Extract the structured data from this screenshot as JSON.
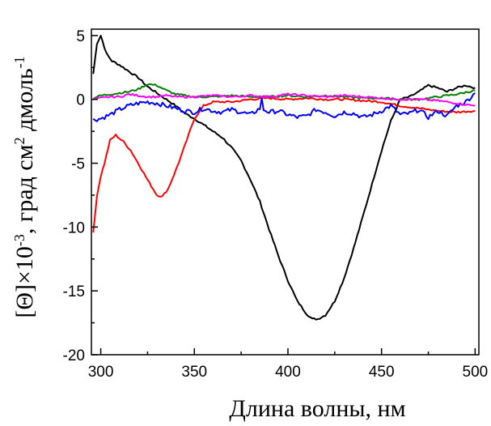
{
  "chart_data": {
    "type": "line",
    "xlabel": "Длина волны, нм",
    "ylabel": {
      "parts": [
        {
          "text": "[Θ]×10",
          "sup": false
        },
        {
          "text": "-3",
          "sup": true
        },
        {
          "text": ", град см",
          "sup": false
        },
        {
          "text": "2",
          "sup": true
        },
        {
          "text": " дмоль",
          "sup": false
        },
        {
          "text": "-1",
          "sup": true
        }
      ]
    },
    "xlim": [
      295,
      502
    ],
    "ylim": [
      -20,
      5.5
    ],
    "xticks": [
      300,
      350,
      400,
      450,
      500
    ],
    "yticks": [
      5,
      0,
      -5,
      -10,
      -15,
      -20
    ],
    "grid": false,
    "legend": "none",
    "series": [
      {
        "color": "#000000",
        "points": [
          [
            296,
            2.0
          ],
          [
            298,
            4.4
          ],
          [
            300,
            5.0
          ],
          [
            303,
            3.6
          ],
          [
            306,
            3.0
          ],
          [
            310,
            2.7
          ],
          [
            315,
            2.2
          ],
          [
            320,
            1.7
          ],
          [
            325,
            1.0
          ],
          [
            330,
            0.5
          ],
          [
            335,
            0.0
          ],
          [
            340,
            -0.5
          ],
          [
            345,
            -1.1
          ],
          [
            350,
            -1.5
          ],
          [
            355,
            -2.0
          ],
          [
            360,
            -2.5
          ],
          [
            365,
            -3.0
          ],
          [
            370,
            -3.8
          ],
          [
            375,
            -4.8
          ],
          [
            380,
            -6.3
          ],
          [
            385,
            -8.0
          ],
          [
            390,
            -10.2
          ],
          [
            395,
            -12.3
          ],
          [
            400,
            -14.2
          ],
          [
            405,
            -15.8
          ],
          [
            410,
            -16.8
          ],
          [
            413,
            -17.2
          ],
          [
            416,
            -17.2
          ],
          [
            420,
            -16.9
          ],
          [
            425,
            -15.8
          ],
          [
            430,
            -14.0
          ],
          [
            435,
            -11.7
          ],
          [
            440,
            -9.2
          ],
          [
            445,
            -6.6
          ],
          [
            450,
            -4.0
          ],
          [
            455,
            -1.7
          ],
          [
            460,
            0.0
          ],
          [
            465,
            0.2
          ],
          [
            470,
            0.6
          ],
          [
            475,
            1.1
          ],
          [
            480,
            0.9
          ],
          [
            485,
            0.6
          ],
          [
            490,
            0.9
          ],
          [
            495,
            1.1
          ],
          [
            500,
            0.9
          ]
        ]
      },
      {
        "color": "#ff0000",
        "points": [
          [
            296,
            -10.5
          ],
          [
            298,
            -7.5
          ],
          [
            300,
            -6.0
          ],
          [
            302,
            -5.0
          ],
          [
            305,
            -3.2
          ],
          [
            308,
            -2.8
          ],
          [
            312,
            -3.3
          ],
          [
            316,
            -4.0
          ],
          [
            320,
            -5.0
          ],
          [
            325,
            -6.3
          ],
          [
            330,
            -7.5
          ],
          [
            333,
            -7.6
          ],
          [
            336,
            -7.0
          ],
          [
            340,
            -5.6
          ],
          [
            345,
            -3.6
          ],
          [
            350,
            -1.5
          ],
          [
            355,
            -0.5
          ],
          [
            360,
            -0.2
          ],
          [
            370,
            -0.2
          ],
          [
            380,
            0.0
          ],
          [
            390,
            0.1
          ],
          [
            400,
            0.0
          ],
          [
            410,
            0.1
          ],
          [
            420,
            0.0
          ],
          [
            430,
            0.0
          ],
          [
            440,
            -0.1
          ],
          [
            450,
            -0.2
          ],
          [
            460,
            -0.5
          ],
          [
            470,
            -0.7
          ],
          [
            480,
            -0.9
          ],
          [
            490,
            -1.0
          ],
          [
            500,
            -0.9
          ]
        ]
      },
      {
        "color": "#0000ff",
        "points": [
          [
            296,
            -1.6
          ],
          [
            300,
            -1.5
          ],
          [
            305,
            -1.2
          ],
          [
            310,
            -0.8
          ],
          [
            315,
            -0.5
          ],
          [
            320,
            -0.3
          ],
          [
            325,
            -0.2
          ],
          [
            330,
            -0.3
          ],
          [
            335,
            -0.5
          ],
          [
            340,
            -0.7
          ],
          [
            345,
            -0.9
          ],
          [
            350,
            -1.0
          ],
          [
            355,
            -0.7
          ],
          [
            360,
            -0.9
          ],
          [
            365,
            -1.0
          ],
          [
            370,
            -0.8
          ],
          [
            375,
            -1.0
          ],
          [
            380,
            -1.2
          ],
          [
            385,
            -0.7
          ],
          [
            386,
            0.0
          ],
          [
            387,
            -0.8
          ],
          [
            390,
            -1.0
          ],
          [
            395,
            -0.9
          ],
          [
            400,
            -1.2
          ],
          [
            405,
            -1.4
          ],
          [
            410,
            -1.3
          ],
          [
            415,
            -0.8
          ],
          [
            420,
            -1.0
          ],
          [
            425,
            -1.3
          ],
          [
            430,
            -1.0
          ],
          [
            435,
            -1.1
          ],
          [
            440,
            -1.4
          ],
          [
            445,
            -1.2
          ],
          [
            450,
            -0.9
          ],
          [
            455,
            -0.5
          ],
          [
            460,
            -1.2
          ],
          [
            465,
            -1.1
          ],
          [
            470,
            -0.8
          ],
          [
            475,
            -1.4
          ],
          [
            480,
            -0.9
          ],
          [
            485,
            -1.3
          ],
          [
            490,
            -0.5
          ],
          [
            495,
            -0.2
          ],
          [
            500,
            0.5
          ]
        ]
      },
      {
        "color": "#008000",
        "points": [
          [
            296,
            0.1
          ],
          [
            300,
            0.3
          ],
          [
            305,
            0.4
          ],
          [
            310,
            0.5
          ],
          [
            315,
            0.6
          ],
          [
            320,
            0.8
          ],
          [
            325,
            1.2
          ],
          [
            330,
            1.1
          ],
          [
            335,
            0.7
          ],
          [
            340,
            0.4
          ],
          [
            345,
            0.3
          ],
          [
            350,
            0.2
          ],
          [
            360,
            0.2
          ],
          [
            370,
            0.3
          ],
          [
            380,
            0.2
          ],
          [
            390,
            0.2
          ],
          [
            400,
            0.3
          ],
          [
            410,
            0.2
          ],
          [
            420,
            0.3
          ],
          [
            430,
            0.2
          ],
          [
            440,
            0.1
          ],
          [
            450,
            0.1
          ],
          [
            460,
            0.0
          ],
          [
            470,
            0.0
          ],
          [
            480,
            0.2
          ],
          [
            490,
            0.4
          ],
          [
            500,
            0.7
          ]
        ]
      },
      {
        "color": "#ff00ff",
        "points": [
          [
            296,
            0.0
          ],
          [
            300,
            0.1
          ],
          [
            305,
            0.2
          ],
          [
            310,
            0.2
          ],
          [
            315,
            0.4
          ],
          [
            320,
            0.3
          ],
          [
            325,
            0.2
          ],
          [
            330,
            0.2
          ],
          [
            335,
            0.3
          ],
          [
            340,
            0.2
          ],
          [
            350,
            0.2
          ],
          [
            360,
            0.3
          ],
          [
            370,
            0.2
          ],
          [
            380,
            0.3
          ],
          [
            390,
            0.2
          ],
          [
            400,
            0.4
          ],
          [
            410,
            0.3
          ],
          [
            420,
            0.2
          ],
          [
            430,
            0.3
          ],
          [
            440,
            0.2
          ],
          [
            450,
            0.1
          ],
          [
            460,
            0.0
          ],
          [
            470,
            0.0
          ],
          [
            480,
            -0.1
          ],
          [
            490,
            -0.3
          ],
          [
            500,
            -0.5
          ]
        ]
      }
    ]
  }
}
